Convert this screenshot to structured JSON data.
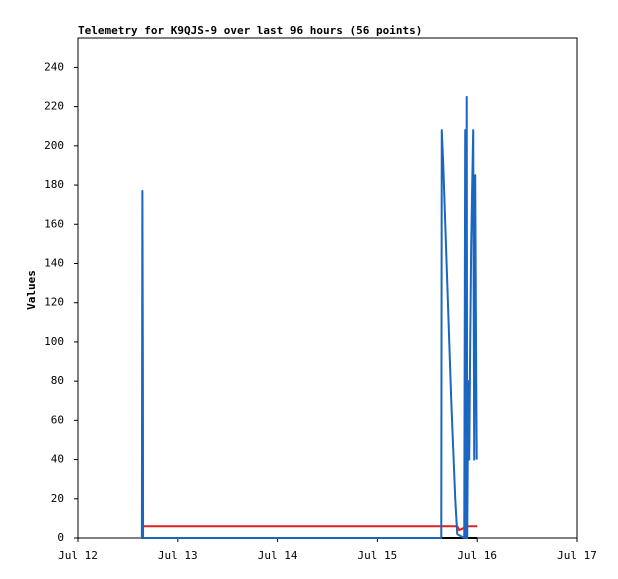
{
  "chart_data": {
    "type": "line",
    "title": "Telemetry for K9QJS-9 over last 96 hours (56 points)",
    "y_label": "Values",
    "xlim": [
      12,
      17
    ],
    "xticks": [
      {
        "value": 12,
        "label": "Jul 12"
      },
      {
        "value": 13,
        "label": "Jul 13"
      },
      {
        "value": 14,
        "label": "Jul 14"
      },
      {
        "value": 15,
        "label": "Jul 15"
      },
      {
        "value": 16,
        "label": "Jul 16"
      },
      {
        "value": 17,
        "label": "Jul 17"
      }
    ],
    "ylim": [
      0,
      255
    ],
    "yticks": [
      0,
      20,
      40,
      60,
      80,
      100,
      120,
      140,
      160,
      180,
      200,
      220,
      240
    ],
    "series": [
      {
        "color": "#000000",
        "x": [
          12.64,
          16.0
        ],
        "values": [
          0,
          0
        ]
      },
      {
        "color": "#e02020",
        "x": [
          12.64,
          15.8,
          15.82,
          15.86,
          15.9,
          16.0
        ],
        "values": [
          6,
          6,
          4,
          5,
          6,
          6
        ]
      },
      {
        "color": "#1a66c0",
        "x": [
          12.64,
          12.645,
          12.65,
          12.652,
          15.64,
          15.645,
          15.65,
          15.66,
          15.68,
          15.7,
          15.72,
          15.74,
          15.76,
          15.78,
          15.8,
          15.87,
          15.88,
          15.89,
          15.895,
          15.9,
          15.91,
          15.92,
          15.93,
          15.94,
          15.95,
          15.96,
          15.97,
          15.98,
          15.99,
          15.995
        ],
        "values": [
          0,
          177,
          88,
          0,
          0,
          208,
          202,
          190,
          160,
          130,
          100,
          70,
          45,
          20,
          2,
          0,
          208,
          0,
          225,
          0,
          80,
          40,
          100,
          150,
          180,
          208,
          40,
          185,
          80,
          40
        ]
      }
    ]
  }
}
